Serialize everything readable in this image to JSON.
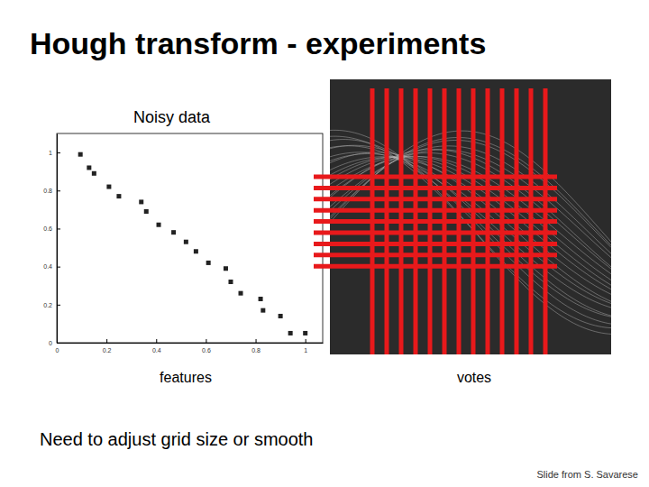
{
  "chart_data": {
    "type": "scatter",
    "title": "Noisy data",
    "x_label": "features",
    "x": [
      0.095,
      0.13,
      0.15,
      0.21,
      0.25,
      0.34,
      0.36,
      0.41,
      0.47,
      0.52,
      0.56,
      0.61,
      0.68,
      0.7,
      0.74,
      0.82,
      0.83,
      0.9,
      0.94,
      1.0
    ],
    "values": [
      0.99,
      0.92,
      0.89,
      0.82,
      0.77,
      0.74,
      0.69,
      0.62,
      0.58,
      0.53,
      0.48,
      0.42,
      0.39,
      0.32,
      0.26,
      0.23,
      0.17,
      0.14,
      0.05,
      0.05
    ],
    "xlim": [
      0,
      1.07
    ],
    "ylim": [
      0,
      1.1
    ],
    "xticks": [
      0,
      0.2,
      0.4,
      0.6,
      0.8,
      1
    ],
    "yticks": [
      0,
      0.2,
      0.4,
      0.6,
      0.8,
      1
    ],
    "marker": "square",
    "color": "#222222"
  },
  "slide": {
    "title": "Hough transform - experiments",
    "votes_label": "votes",
    "note": "Need to adjust grid size or smooth",
    "credit": "Slide from S. Savarese"
  }
}
